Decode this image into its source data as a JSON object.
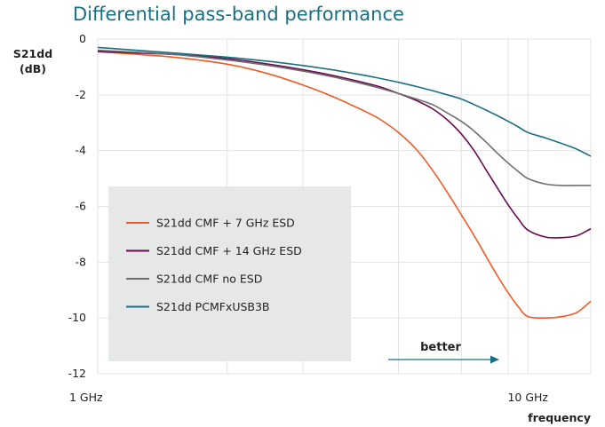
{
  "chart_data": {
    "type": "line",
    "title": "Differential pass-band performance",
    "ylabel": [
      "S21dd",
      "(dB)"
    ],
    "xlabel": "frequency",
    "xscale": "log",
    "xlim": [
      1,
      14
    ],
    "ylim": [
      -12,
      0
    ],
    "yticks": [
      0,
      -2,
      -4,
      -6,
      -8,
      -10,
      -12
    ],
    "xtick_labels": [
      {
        "x": 1,
        "label": "1 GHz"
      },
      {
        "x": 10,
        "label": "10 GHz"
      }
    ],
    "minor_x_gridlines": [
      2,
      3,
      5,
      7,
      9
    ],
    "grid": true,
    "legend_position": "lower-left",
    "annotation": {
      "text": "better",
      "arrow": "right"
    },
    "series": [
      {
        "name": "S21dd CMF + 7 GHz ESD",
        "color": "#f05a24",
        "x": [
          1,
          1.5,
          2,
          2.5,
          3,
          3.5,
          4,
          4.5,
          5,
          5.5,
          6,
          6.5,
          7,
          7.5,
          8,
          8.5,
          9,
          9.5,
          10,
          11,
          12,
          13,
          14
        ],
        "y": [
          -0.45,
          -0.65,
          -0.9,
          -1.25,
          -1.65,
          -2.05,
          -2.45,
          -2.85,
          -3.35,
          -3.95,
          -4.7,
          -5.5,
          -6.3,
          -7.05,
          -7.8,
          -8.5,
          -9.1,
          -9.6,
          -9.95,
          -10.0,
          -9.95,
          -9.8,
          -9.4
        ]
      },
      {
        "name": "S21dd CMF + 14 GHz ESD",
        "color": "#6a0a4f",
        "x": [
          1,
          1.5,
          2,
          2.5,
          3,
          3.5,
          4,
          4.5,
          5,
          5.5,
          6,
          6.5,
          7,
          7.5,
          8,
          8.5,
          9,
          9.5,
          10,
          11,
          12,
          13,
          14
        ],
        "y": [
          -0.45,
          -0.55,
          -0.7,
          -0.9,
          -1.1,
          -1.3,
          -1.5,
          -1.7,
          -1.95,
          -2.2,
          -2.5,
          -2.9,
          -3.4,
          -4.0,
          -4.7,
          -5.35,
          -5.95,
          -6.45,
          -6.85,
          -7.1,
          -7.12,
          -7.05,
          -6.8
        ]
      },
      {
        "name": "S21dd CMF no ESD",
        "color": "#6e6e6e",
        "x": [
          1,
          1.5,
          2,
          2.5,
          3,
          3.5,
          4,
          4.5,
          5,
          5.5,
          6,
          6.5,
          7,
          7.5,
          8,
          8.5,
          9,
          9.5,
          10,
          11,
          12,
          13,
          14
        ],
        "y": [
          -0.4,
          -0.55,
          -0.75,
          -0.95,
          -1.15,
          -1.35,
          -1.55,
          -1.75,
          -1.95,
          -2.15,
          -2.35,
          -2.65,
          -2.95,
          -3.3,
          -3.7,
          -4.1,
          -4.45,
          -4.75,
          -5.0,
          -5.2,
          -5.25,
          -5.25,
          -5.25
        ]
      },
      {
        "name": "S21dd PCMFxUSB3B",
        "color": "#1b6f82",
        "x": [
          1,
          1.5,
          2,
          2.5,
          3,
          3.5,
          4,
          4.5,
          5,
          5.5,
          6,
          6.5,
          7,
          7.5,
          8,
          8.5,
          9,
          9.5,
          10,
          11,
          12,
          13,
          14
        ],
        "y": [
          -0.3,
          -0.5,
          -0.65,
          -0.8,
          -0.95,
          -1.1,
          -1.25,
          -1.4,
          -1.55,
          -1.7,
          -1.85,
          -2.0,
          -2.15,
          -2.35,
          -2.55,
          -2.75,
          -2.95,
          -3.15,
          -3.35,
          -3.55,
          -3.75,
          -3.95,
          -4.2
        ]
      }
    ]
  }
}
